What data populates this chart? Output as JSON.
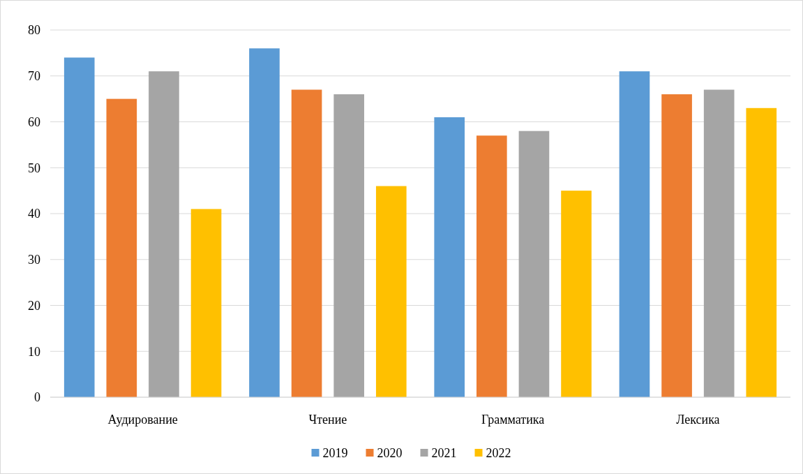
{
  "chart_data": {
    "type": "bar",
    "categories": [
      "Аудирование",
      "Чтение",
      "Грамматика",
      "Лексика"
    ],
    "series": [
      {
        "name": "2019",
        "color": "#5b9bd5",
        "values": [
          74,
          76,
          61,
          71
        ]
      },
      {
        "name": "2020",
        "color": "#ed7d31",
        "values": [
          65,
          67,
          57,
          66
        ]
      },
      {
        "name": "2021",
        "color": "#a5a5a5",
        "values": [
          71,
          66,
          58,
          67
        ]
      },
      {
        "name": "2022",
        "color": "#ffc000",
        "values": [
          41,
          46,
          45,
          63
        ]
      }
    ],
    "ylim": [
      0,
      80
    ],
    "yticks": [
      0,
      10,
      20,
      30,
      40,
      50,
      60,
      70,
      80
    ],
    "grid": "y",
    "legend": "bottom"
  }
}
